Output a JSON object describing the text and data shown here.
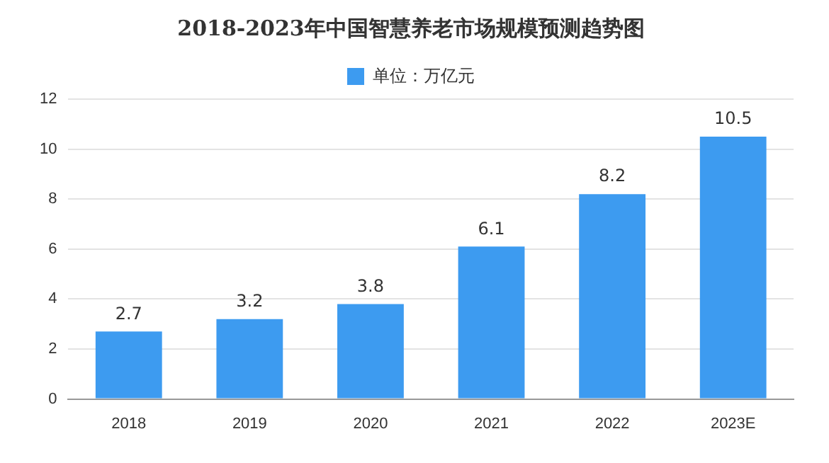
{
  "chart_data": {
    "type": "bar",
    "title": "2018-2023年中国智慧养老市场规模预测趋势图",
    "categories": [
      "2018",
      "2019",
      "2020",
      "2021",
      "2022",
      "2023E"
    ],
    "series": [
      {
        "name": "单位：万亿元",
        "color": "#3d9bf0",
        "values": [
          2.7,
          3.2,
          3.8,
          6.1,
          8.2,
          10.5
        ]
      }
    ],
    "ylim": [
      0,
      12
    ],
    "yticks": [
      0,
      2,
      4,
      6,
      8,
      10,
      12
    ],
    "grid": "y",
    "legend": "top",
    "data_labels": true
  }
}
